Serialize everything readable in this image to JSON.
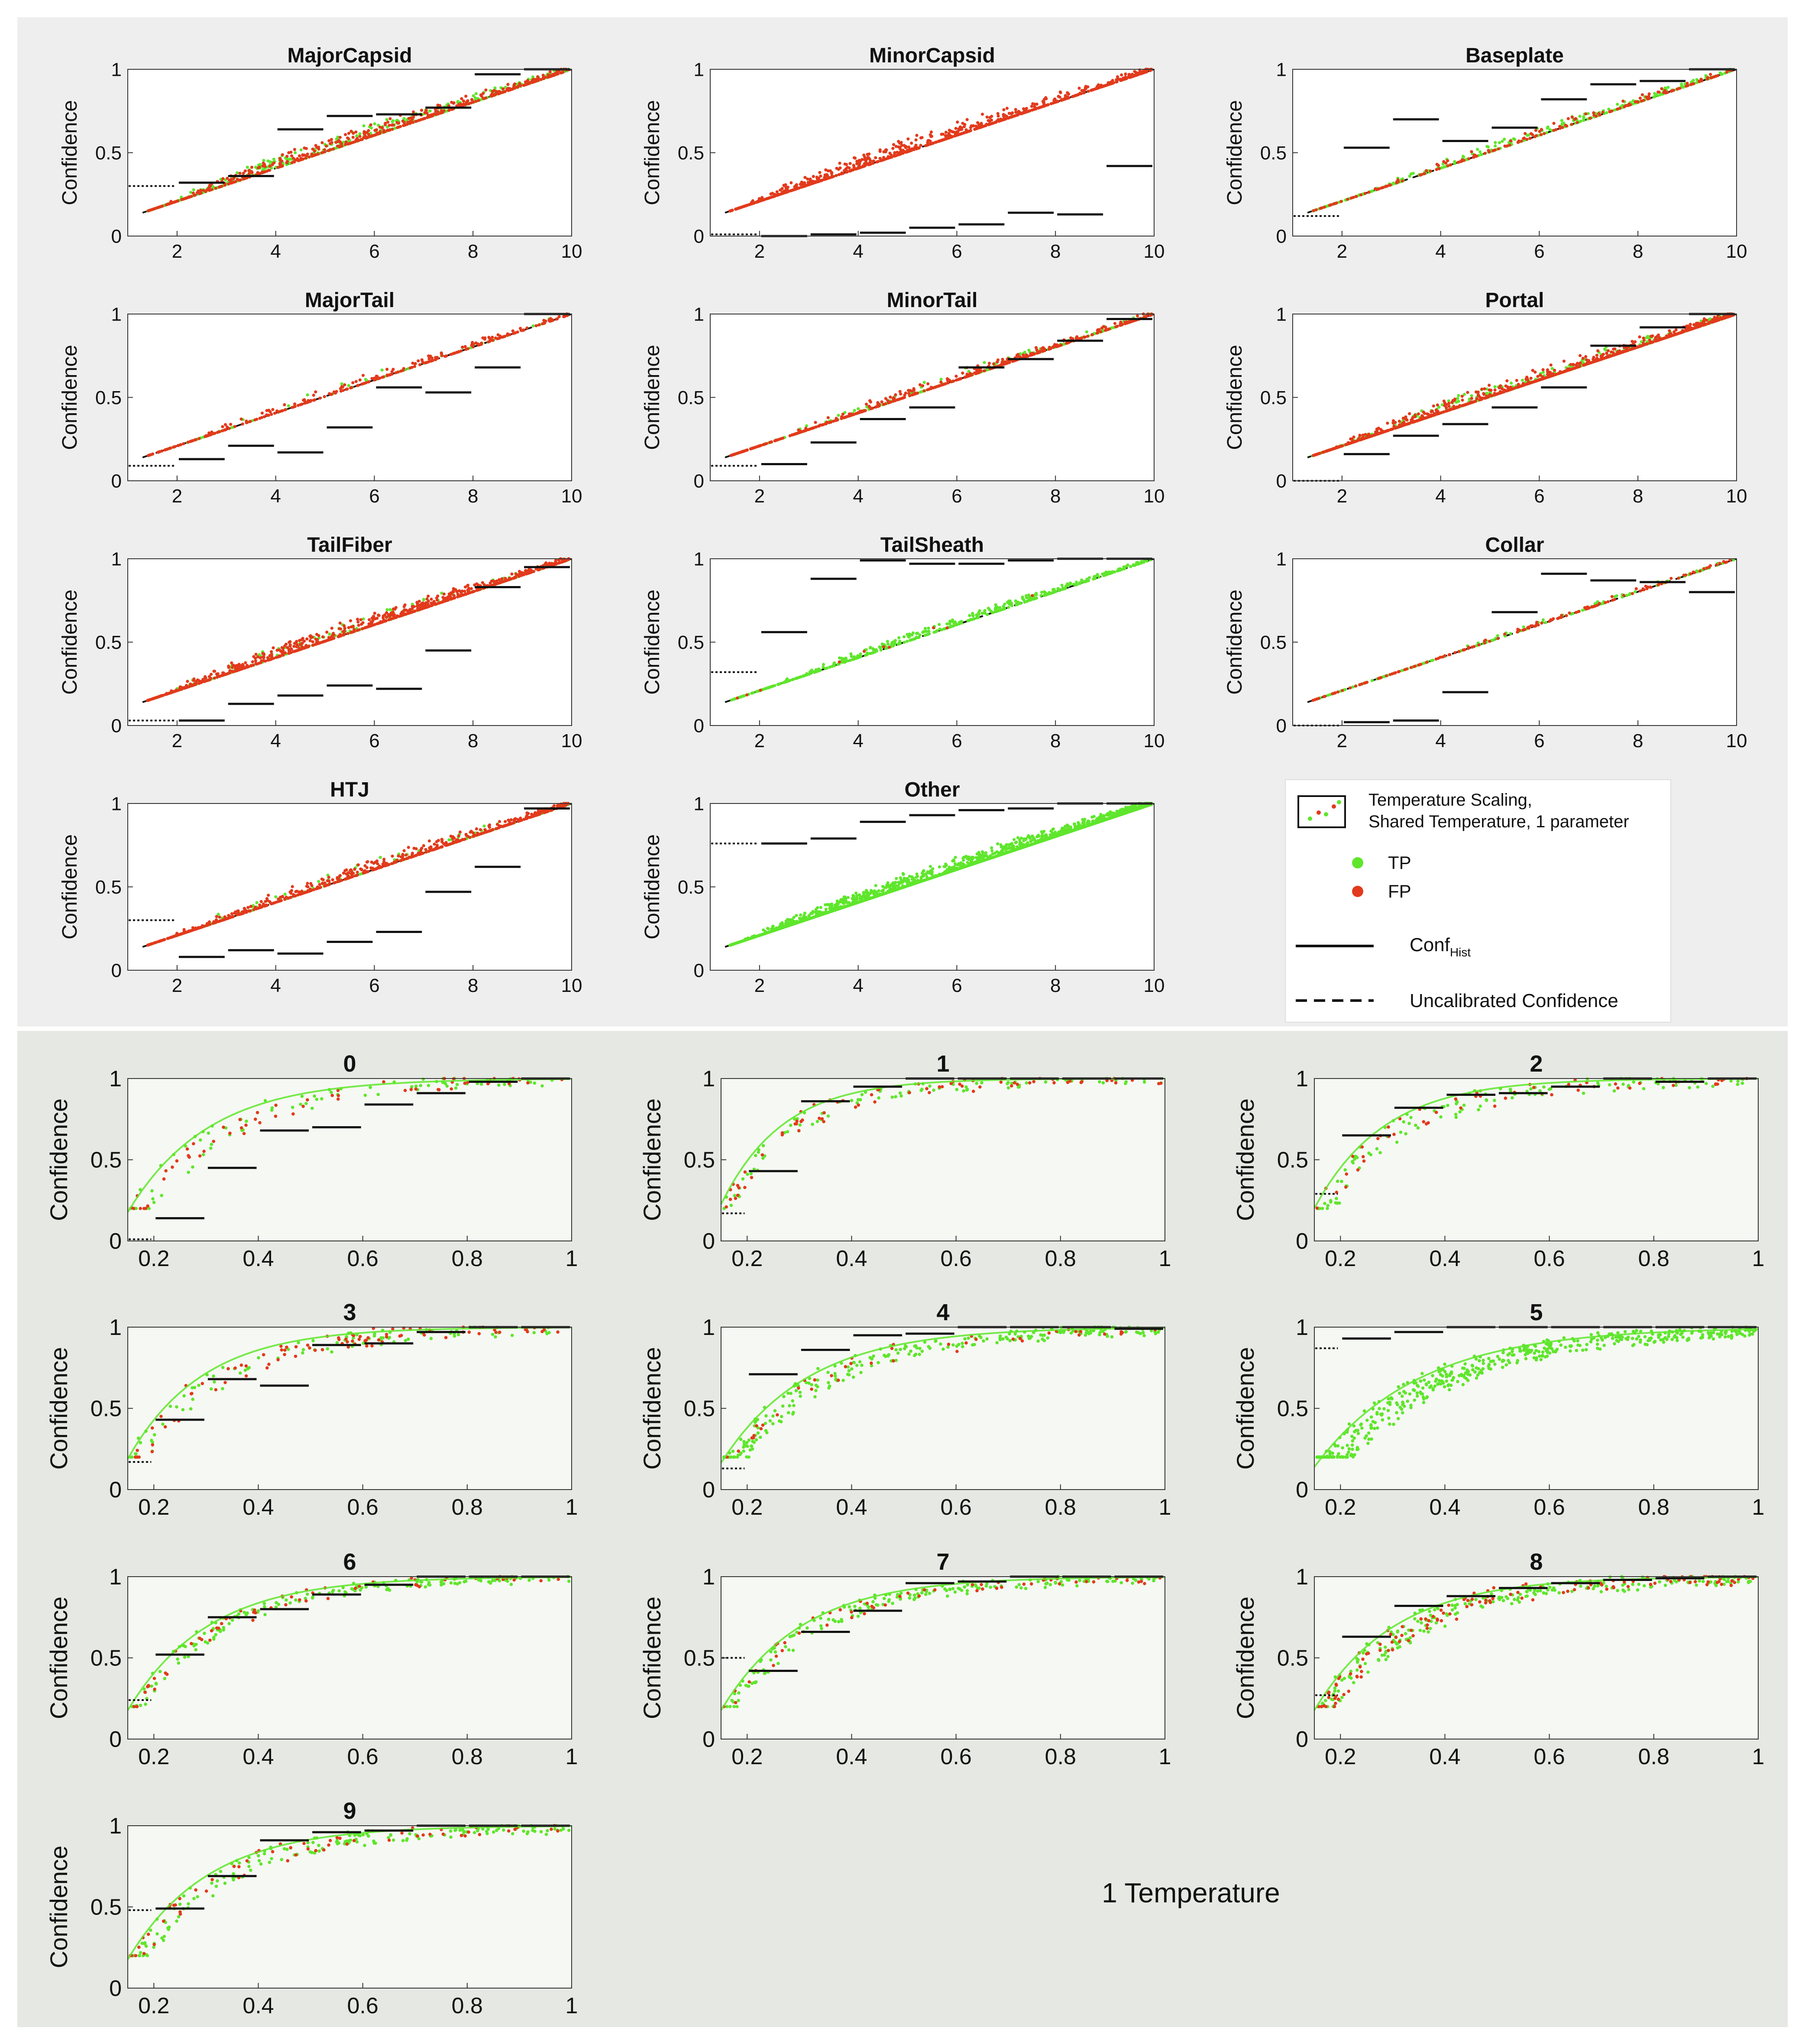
{
  "colors": {
    "top_panel_bg": "#eeeeee",
    "bottom_panel_bg": "#e6e8e3",
    "axes_bg_top": "#ffffff",
    "axes_bg_bottom": "#f6f8f3",
    "tp": "#5fe62c",
    "fp": "#e23a1c",
    "hist": "#111111"
  },
  "axis_label": "Confidence",
  "legend": {
    "title_line1": "Temperature Scaling,",
    "title_line2": "Shared Temperature, 1 parameter",
    "tp": "TP",
    "fp": "FP",
    "hist_main": "Conf",
    "hist_sub": "Hist",
    "uncal": "Uncalibrated Confidence"
  },
  "caption": "1 Temperature",
  "chart_data": [
    {
      "title": "MajorCapsid",
      "type": "scatter",
      "xlim": [
        1,
        10
      ],
      "ylim": [
        0,
        1
      ],
      "xticks": [
        2,
        4,
        6,
        8,
        10
      ],
      "xtick_labels": [
        "2",
        "4",
        "6",
        "8",
        "10"
      ],
      "yticks": [
        0,
        0.5,
        1
      ],
      "ytick_labels": [
        "0",
        "0.5",
        "1"
      ],
      "ylabel": "Confidence",
      "curve": {
        "p": 0.7,
        "spread": 0.05
      },
      "scatter": {
        "n": 1000,
        "fp_frac": 0.55
      },
      "hist_first": 0.3,
      "hist": [
        0.32,
        0.36,
        0.64,
        0.72,
        0.73,
        0.77,
        0.97,
        1.0
      ]
    },
    {
      "title": "MinorCapsid",
      "type": "scatter",
      "xlim": [
        1,
        10
      ],
      "ylim": [
        0,
        1
      ],
      "xticks": [
        2,
        4,
        6,
        8,
        10
      ],
      "xtick_labels": [
        "2",
        "4",
        "6",
        "8",
        "10"
      ],
      "yticks": [
        0,
        0.5,
        1
      ],
      "ytick_labels": [
        "0",
        "0.5",
        "1"
      ],
      "ylabel": "Confidence",
      "curve": {
        "p": 0.7,
        "spread": 0.06
      },
      "scatter": {
        "n": 900,
        "fp_frac": 1.0
      },
      "hist_first": 0.01,
      "hist": [
        0.0,
        0.01,
        0.02,
        0.05,
        0.07,
        0.14,
        0.13,
        0.42
      ]
    },
    {
      "title": "Baseplate",
      "type": "scatter",
      "xlim": [
        1,
        10
      ],
      "ylim": [
        0,
        1
      ],
      "xticks": [
        2,
        4,
        6,
        8,
        10
      ],
      "xtick_labels": [
        "2",
        "4",
        "6",
        "8",
        "10"
      ],
      "yticks": [
        0,
        0.5,
        1
      ],
      "ytick_labels": [
        "0",
        "0.5",
        "1"
      ],
      "ylabel": "Confidence",
      "curve": {
        "p": 0.75,
        "spread": 0.04
      },
      "scatter": {
        "n": 500,
        "fp_frac": 0.4
      },
      "hist_first": 0.12,
      "hist": [
        0.53,
        0.7,
        0.57,
        0.65,
        0.82,
        0.91,
        0.93,
        1.0
      ]
    },
    {
      "title": "MajorTail",
      "type": "scatter",
      "xlim": [
        1,
        10
      ],
      "ylim": [
        0,
        1
      ],
      "xticks": [
        2,
        4,
        6,
        8,
        10
      ],
      "xtick_labels": [
        "2",
        "4",
        "6",
        "8",
        "10"
      ],
      "yticks": [
        0,
        0.5,
        1
      ],
      "ytick_labels": [
        "0",
        "0.5",
        "1"
      ],
      "ylabel": "Confidence",
      "curve": {
        "p": 0.75,
        "spread": 0.04
      },
      "scatter": {
        "n": 380,
        "fp_frac": 0.85
      },
      "hist_first": 0.09,
      "hist": [
        0.13,
        0.21,
        0.17,
        0.32,
        0.56,
        0.53,
        0.68,
        1.0
      ]
    },
    {
      "title": "MinorTail",
      "type": "scatter",
      "xlim": [
        1,
        10
      ],
      "ylim": [
        0,
        1
      ],
      "xticks": [
        2,
        4,
        6,
        8,
        10
      ],
      "xtick_labels": [
        "2",
        "4",
        "6",
        "8",
        "10"
      ],
      "yticks": [
        0,
        0.5,
        1
      ],
      "ytick_labels": [
        "0",
        "0.5",
        "1"
      ],
      "ylabel": "Confidence",
      "curve": {
        "p": 0.75,
        "spread": 0.05
      },
      "scatter": {
        "n": 700,
        "fp_frac": 0.7
      },
      "hist_first": 0.09,
      "hist": [
        0.1,
        0.23,
        0.37,
        0.44,
        0.68,
        0.73,
        0.84,
        0.97
      ]
    },
    {
      "title": "Portal",
      "type": "scatter",
      "xlim": [
        1,
        10
      ],
      "ylim": [
        0,
        1
      ],
      "xticks": [
        2,
        4,
        6,
        8,
        10
      ],
      "xtick_labels": [
        "2",
        "4",
        "6",
        "8",
        "10"
      ],
      "yticks": [
        0,
        0.5,
        1
      ],
      "ytick_labels": [
        "0",
        "0.5",
        "1"
      ],
      "ylabel": "Confidence",
      "curve": {
        "p": 0.72,
        "spread": 0.07
      },
      "scatter": {
        "n": 1600,
        "fp_frac": 0.65
      },
      "hist_first": 0.0,
      "hist": [
        0.16,
        0.27,
        0.34,
        0.44,
        0.56,
        0.81,
        0.92,
        1.0
      ]
    },
    {
      "title": "TailFiber",
      "type": "scatter",
      "xlim": [
        1,
        10
      ],
      "ylim": [
        0,
        1
      ],
      "xticks": [
        2,
        4,
        6,
        8,
        10
      ],
      "xtick_labels": [
        "2",
        "4",
        "6",
        "8",
        "10"
      ],
      "yticks": [
        0,
        0.5,
        1
      ],
      "ytick_labels": [
        "0",
        "0.5",
        "1"
      ],
      "ylabel": "Confidence",
      "curve": {
        "p": 0.7,
        "spread": 0.05
      },
      "scatter": {
        "n": 1000,
        "fp_frac": 0.85
      },
      "hist_first": 0.03,
      "hist": [
        0.03,
        0.13,
        0.18,
        0.24,
        0.22,
        0.45,
        0.83,
        0.95
      ]
    },
    {
      "title": "TailSheath",
      "type": "scatter",
      "xlim": [
        1,
        10
      ],
      "ylim": [
        0,
        1
      ],
      "xticks": [
        2,
        4,
        6,
        8,
        10
      ],
      "xtick_labels": [
        "2",
        "4",
        "6",
        "8",
        "10"
      ],
      "yticks": [
        0,
        0.5,
        1
      ],
      "ytick_labels": [
        "0",
        "0.5",
        "1"
      ],
      "ylabel": "Confidence",
      "curve": {
        "p": 0.75,
        "spread": 0.03
      },
      "scatter": {
        "n": 500,
        "fp_frac": 0.03
      },
      "hist_first": 0.32,
      "hist": [
        0.56,
        0.88,
        0.99,
        0.97,
        0.97,
        0.99,
        1.0,
        1.0
      ]
    },
    {
      "title": "Collar",
      "type": "scatter",
      "xlim": [
        1,
        10
      ],
      "ylim": [
        0,
        1
      ],
      "xticks": [
        2,
        4,
        6,
        8,
        10
      ],
      "xtick_labels": [
        "2",
        "4",
        "6",
        "8",
        "10"
      ],
      "yticks": [
        0,
        0.5,
        1
      ],
      "ytick_labels": [
        "0",
        "0.5",
        "1"
      ],
      "ylabel": "Confidence",
      "curve": {
        "p": 0.8,
        "spread": 0.02
      },
      "scatter": {
        "n": 300,
        "fp_frac": 0.55
      },
      "hist_first": 0.0,
      "hist": [
        0.02,
        0.03,
        0.2,
        0.68,
        0.91,
        0.87,
        0.86,
        0.8
      ]
    },
    {
      "title": "HTJ",
      "type": "scatter",
      "xlim": [
        1,
        10
      ],
      "ylim": [
        0,
        1
      ],
      "xticks": [
        2,
        4,
        6,
        8,
        10
      ],
      "xtick_labels": [
        "2",
        "4",
        "6",
        "8",
        "10"
      ],
      "yticks": [
        0,
        0.5,
        1
      ],
      "ytick_labels": [
        "0",
        "0.5",
        "1"
      ],
      "ylabel": "Confidence",
      "curve": {
        "p": 0.72,
        "spread": 0.05
      },
      "scatter": {
        "n": 800,
        "fp_frac": 0.85
      },
      "hist_first": 0.3,
      "hist": [
        0.08,
        0.12,
        0.1,
        0.17,
        0.23,
        0.47,
        0.62,
        0.97
      ]
    },
    {
      "title": "Other",
      "type": "scatter",
      "xlim": [
        1,
        10
      ],
      "ylim": [
        0,
        1
      ],
      "xticks": [
        2,
        4,
        6,
        8,
        10
      ],
      "xtick_labels": [
        "2",
        "4",
        "6",
        "8",
        "10"
      ],
      "yticks": [
        0,
        0.5,
        1
      ],
      "ytick_labels": [
        "0",
        "0.5",
        "1"
      ],
      "ylabel": "Confidence",
      "curve": {
        "p": 0.72,
        "spread": 0.08
      },
      "scatter": {
        "n": 2800,
        "fp_frac": 0.0
      },
      "hist_first": 0.76,
      "hist": [
        0.76,
        0.79,
        0.89,
        0.93,
        0.96,
        0.97,
        1.0,
        1.0
      ]
    },
    {
      "title": "0",
      "type": "scatter",
      "xlim": [
        0.15,
        1
      ],
      "ylim": [
        0,
        1
      ],
      "xticks": [
        0.2,
        0.4,
        0.6,
        0.8,
        1
      ],
      "xtick_labels": [
        "0.2",
        "0.4",
        "0.6",
        "0.8",
        "1"
      ],
      "yticks": [
        0,
        0.5,
        1
      ],
      "ytick_labels": [
        "0",
        "0.5",
        "1"
      ],
      "ylabel": "Confidence",
      "curve": {
        "k": 6.5,
        "spread": 0.1
      },
      "scatter": {
        "n": 140,
        "fp_frac": 0.45
      },
      "hist_first": 0.01,
      "hist": [
        0.14,
        0.45,
        0.68,
        0.7,
        0.84,
        0.91,
        0.98,
        1.0
      ]
    },
    {
      "title": "1",
      "type": "scatter",
      "xlim": [
        0.15,
        1
      ],
      "ylim": [
        0,
        1
      ],
      "xticks": [
        0.2,
        0.4,
        0.6,
        0.8,
        1
      ],
      "xtick_labels": [
        "0.2",
        "0.4",
        "0.6",
        "0.8",
        "1"
      ],
      "yticks": [
        0,
        0.5,
        1
      ],
      "ytick_labels": [
        "0",
        "0.5",
        "1"
      ],
      "ylabel": "Confidence",
      "curve": {
        "k": 8.5,
        "spread": 0.07
      },
      "scatter": {
        "n": 160,
        "fp_frac": 0.45
      },
      "hist_first": 0.17,
      "hist": [
        0.43,
        0.86,
        0.95,
        1.0,
        1.0,
        1.0,
        1.0,
        1.0
      ]
    },
    {
      "title": "2",
      "type": "scatter",
      "xlim": [
        0.15,
        1
      ],
      "ylim": [
        0,
        1
      ],
      "xticks": [
        0.2,
        0.4,
        0.6,
        0.8,
        1
      ],
      "xtick_labels": [
        "0.2",
        "0.4",
        "0.6",
        "0.8",
        "1"
      ],
      "yticks": [
        0,
        0.5,
        1
      ],
      "ytick_labels": [
        "0",
        "0.5",
        "1"
      ],
      "ylabel": "Confidence",
      "curve": {
        "k": 7.5,
        "spread": 0.09
      },
      "scatter": {
        "n": 180,
        "fp_frac": 0.3
      },
      "hist_first": 0.29,
      "hist": [
        0.65,
        0.82,
        0.9,
        0.91,
        0.95,
        1.0,
        0.98,
        1.0
      ]
    },
    {
      "title": "3",
      "type": "scatter",
      "xlim": [
        0.15,
        1
      ],
      "ylim": [
        0,
        1
      ],
      "xticks": [
        0.2,
        0.4,
        0.6,
        0.8,
        1
      ],
      "xtick_labels": [
        "0.2",
        "0.4",
        "0.6",
        "0.8",
        "1"
      ],
      "yticks": [
        0,
        0.5,
        1
      ],
      "ytick_labels": [
        "0",
        "0.5",
        "1"
      ],
      "ylabel": "Confidence",
      "curve": {
        "k": 7,
        "spread": 0.09
      },
      "scatter": {
        "n": 180,
        "fp_frac": 0.45
      },
      "hist_first": 0.17,
      "hist": [
        0.43,
        0.68,
        0.64,
        0.89,
        0.9,
        0.97,
        1.0,
        1.0
      ]
    },
    {
      "title": "4",
      "type": "scatter",
      "xlim": [
        0.15,
        1
      ],
      "ylim": [
        0,
        1
      ],
      "xticks": [
        0.2,
        0.4,
        0.6,
        0.8,
        1
      ],
      "xtick_labels": [
        "0.2",
        "0.4",
        "0.6",
        "0.8",
        "1"
      ],
      "yticks": [
        0,
        0.5,
        1
      ],
      "ytick_labels": [
        "0",
        "0.5",
        "1"
      ],
      "ylabel": "Confidence",
      "curve": {
        "k": 6,
        "spread": 0.09
      },
      "scatter": {
        "n": 300,
        "fp_frac": 0.15
      },
      "hist_first": 0.13,
      "hist": [
        0.71,
        0.86,
        0.95,
        0.96,
        1.0,
        1.0,
        1.0,
        0.99
      ]
    },
    {
      "title": "5",
      "type": "scatter",
      "xlim": [
        0.15,
        1
      ],
      "ylim": [
        0,
        1
      ],
      "xticks": [
        0.2,
        0.4,
        0.6,
        0.8,
        1
      ],
      "xtick_labels": [
        "0.2",
        "0.4",
        "0.6",
        "0.8",
        "1"
      ],
      "yticks": [
        0,
        0.5,
        1
      ],
      "ytick_labels": [
        "0",
        "0.5",
        "1"
      ],
      "ylabel": "Confidence",
      "curve": {
        "k": 5,
        "spread": 0.1
      },
      "scatter": {
        "n": 500,
        "fp_frac": 0.0
      },
      "hist_first": 0.87,
      "hist": [
        0.93,
        0.97,
        1.0,
        1.0,
        1.0,
        1.0,
        1.0,
        1.0
      ]
    },
    {
      "title": "6",
      "type": "scatter",
      "xlim": [
        0.15,
        1
      ],
      "ylim": [
        0,
        1
      ],
      "xticks": [
        0.2,
        0.4,
        0.6,
        0.8,
        1
      ],
      "xtick_labels": [
        "0.2",
        "0.4",
        "0.6",
        "0.8",
        "1"
      ],
      "yticks": [
        0,
        0.5,
        1
      ],
      "ytick_labels": [
        "0",
        "0.5",
        "1"
      ],
      "ylabel": "Confidence",
      "curve": {
        "k": 6.5,
        "spread": 0.06
      },
      "scatter": {
        "n": 220,
        "fp_frac": 0.25
      },
      "hist_first": 0.24,
      "hist": [
        0.52,
        0.75,
        0.8,
        0.89,
        0.95,
        1.0,
        1.0,
        1.0
      ]
    },
    {
      "title": "7",
      "type": "scatter",
      "xlim": [
        0.15,
        1
      ],
      "ylim": [
        0,
        1
      ],
      "xticks": [
        0.2,
        0.4,
        0.6,
        0.8,
        1
      ],
      "xtick_labels": [
        "0.2",
        "0.4",
        "0.6",
        "0.8",
        "1"
      ],
      "yticks": [
        0,
        0.5,
        1
      ],
      "ytick_labels": [
        "0",
        "0.5",
        "1"
      ],
      "ylabel": "Confidence",
      "curve": {
        "k": 6.5,
        "spread": 0.07
      },
      "scatter": {
        "n": 240,
        "fp_frac": 0.25
      },
      "hist_first": 0.5,
      "hist": [
        0.42,
        0.66,
        0.79,
        0.96,
        0.97,
        1.0,
        1.0,
        1.0
      ]
    },
    {
      "title": "8",
      "type": "scatter",
      "xlim": [
        0.15,
        1
      ],
      "ylim": [
        0,
        1
      ],
      "xticks": [
        0.2,
        0.4,
        0.6,
        0.8,
        1
      ],
      "xtick_labels": [
        "0.2",
        "0.4",
        "0.6",
        "0.8",
        "1"
      ],
      "yticks": [
        0,
        0.5,
        1
      ],
      "ytick_labels": [
        "0",
        "0.5",
        "1"
      ],
      "ylabel": "Confidence",
      "curve": {
        "k": 6.5,
        "spread": 0.09
      },
      "scatter": {
        "n": 380,
        "fp_frac": 0.35
      },
      "hist_first": 0.27,
      "hist": [
        0.63,
        0.82,
        0.88,
        0.93,
        0.96,
        0.98,
        0.99,
        1.0
      ]
    },
    {
      "title": "9",
      "type": "scatter",
      "xlim": [
        0.15,
        1
      ],
      "ylim": [
        0,
        1
      ],
      "xticks": [
        0.2,
        0.4,
        0.6,
        0.8,
        1
      ],
      "xtick_labels": [
        "0.2",
        "0.4",
        "0.6",
        "0.8",
        "1"
      ],
      "yticks": [
        0,
        0.5,
        1
      ],
      "ytick_labels": [
        "0",
        "0.5",
        "1"
      ],
      "ylabel": "Confidence",
      "curve": {
        "k": 6.5,
        "spread": 0.08
      },
      "scatter": {
        "n": 240,
        "fp_frac": 0.3
      },
      "hist_first": 0.48,
      "hist": [
        0.49,
        0.69,
        0.91,
        0.96,
        0.97,
        1.0,
        1.0,
        1.0
      ]
    }
  ]
}
